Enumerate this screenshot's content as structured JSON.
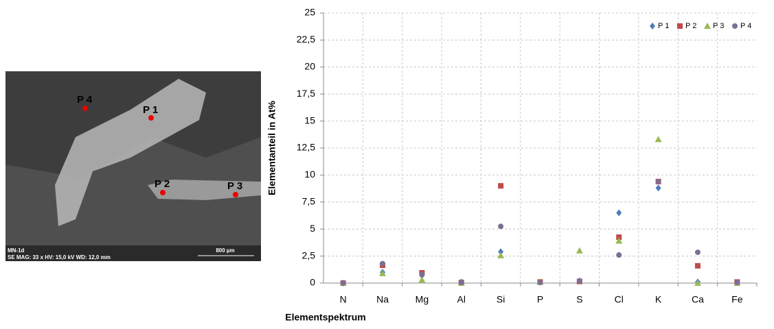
{
  "sem_image": {
    "points": [
      "P 4",
      "P 1",
      "P 2",
      "P 3"
    ],
    "sample": "MN-1d",
    "info": "SE  MAG: 33 x  HV: 15,0 kV  WD: 12,0 mm",
    "scale": "800 µm"
  },
  "chart_data": {
    "type": "scatter",
    "x_label": "Elementspektrum",
    "y_label": "Elementanteil in At%",
    "categories": [
      "N",
      "Na",
      "Mg",
      "Al",
      "Si",
      "P",
      "S",
      "Cl",
      "K",
      "Ca",
      "Fe"
    ],
    "series": [
      {
        "name": "P 1",
        "color": "#4a7ebb",
        "marker": "diamond",
        "values": [
          0,
          1.0,
          0.7,
          0.1,
          2.9,
          0.1,
          0.2,
          6.5,
          8.8,
          0.1,
          0.05
        ]
      },
      {
        "name": "P 2",
        "color": "#be4b48",
        "marker": "square",
        "values": [
          0,
          1.65,
          0.95,
          0.05,
          9.0,
          0.1,
          0.15,
          4.25,
          9.4,
          1.6,
          0.1
        ]
      },
      {
        "name": "P 3",
        "color": "#98b954",
        "marker": "triangle",
        "values": [
          0,
          0.9,
          0.3,
          0,
          2.55,
          0.1,
          3.0,
          3.9,
          13.3,
          0,
          0
        ]
      },
      {
        "name": "P 4",
        "color": "#7d6e94",
        "marker": "circle",
        "values": [
          0,
          1.8,
          0.8,
          0.05,
          5.25,
          0.05,
          0.2,
          2.6,
          9.4,
          2.85,
          0.05
        ]
      }
    ],
    "ylim": [
      0,
      25
    ],
    "yticks": [
      0,
      {
        "value": 2.5,
        "label": "2,5"
      },
      5,
      {
        "value": 7.5,
        "label": "7,5"
      },
      10,
      {
        "value": 12.5,
        "label": "12,5"
      },
      15,
      {
        "value": 17.5,
        "label": "17,5"
      },
      20,
      {
        "value": 22.5,
        "label": "22,5"
      },
      25
    ],
    "grid": true,
    "legend": "top-right"
  }
}
